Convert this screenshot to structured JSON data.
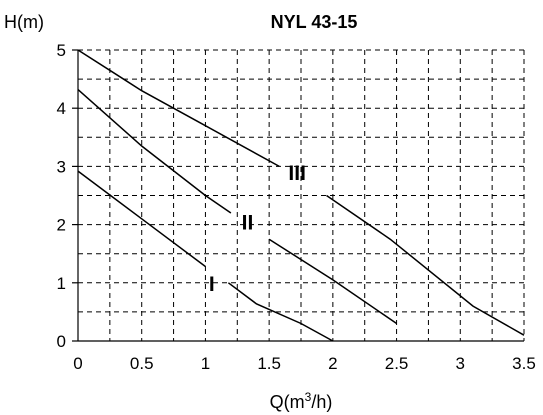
{
  "chart_data": {
    "type": "line",
    "title": "NYL 43-15",
    "ylabel": "H(m)",
    "xlabel_prefix": "Q(m",
    "xlabel_sup": "3",
    "xlabel_suffix": "/h)",
    "xlim": [
      0,
      3.5
    ],
    "ylim": [
      0,
      5
    ],
    "x_ticks": [
      0,
      0.5,
      1,
      1.5,
      2,
      2.5,
      3,
      3.5
    ],
    "x_tick_labels": [
      "0",
      "0.5",
      "1",
      "1.5",
      "2",
      "2.5",
      "3",
      "3.5"
    ],
    "y_ticks": [
      0,
      1,
      2,
      3,
      4,
      5
    ],
    "y_tick_labels": [
      "0",
      "1",
      "2",
      "3",
      "4",
      "5"
    ],
    "grid": true,
    "series": [
      {
        "name": "I",
        "label_at": [
          1.05,
          1.0
        ],
        "segments": [
          [
            [
              0,
              2.92
            ],
            [
              0.5,
              2.1
            ],
            [
              1.0,
              1.28
            ]
          ],
          [
            [
              1.18,
              1.0
            ],
            [
              1.4,
              0.64
            ],
            [
              1.75,
              0.3
            ],
            [
              2.0,
              0.0
            ]
          ]
        ]
      },
      {
        "name": "II",
        "label_at": [
          1.33,
          2.05
        ],
        "segments": [
          [
            [
              0,
              4.32
            ],
            [
              0.5,
              3.35
            ],
            [
              1.0,
              2.5
            ],
            [
              1.2,
              2.2
            ]
          ],
          [
            [
              1.5,
              1.75
            ],
            [
              2.0,
              1.05
            ],
            [
              2.5,
              0.3
            ]
          ]
        ]
      },
      {
        "name": "III",
        "label_at": [
          1.72,
          2.9
        ],
        "segments": [
          [
            [
              0,
              5.0
            ],
            [
              0.5,
              4.3
            ],
            [
              1.0,
              3.7
            ],
            [
              1.58,
              3.0
            ]
          ],
          [
            [
              1.95,
              2.5
            ],
            [
              2.45,
              1.75
            ],
            [
              3.1,
              0.6
            ],
            [
              3.5,
              0.1
            ]
          ]
        ]
      }
    ]
  }
}
